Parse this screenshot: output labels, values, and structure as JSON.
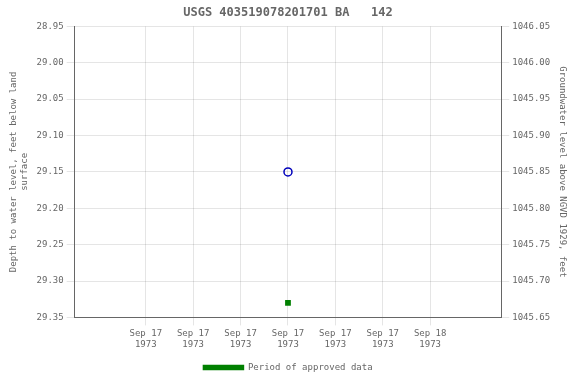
{
  "chart_data": {
    "type": "scatter",
    "title": "USGS 403519078201701 BA   142",
    "y_label": "Depth to water level, feet below land\nsurface",
    "y2_label": "Groundwater level above NGVD 1929, feet",
    "x": [
      12
    ],
    "series": [
      {
        "color": "#0000bb",
        "marker": "circle",
        "values": [
          29.15
        ]
      },
      {
        "name": "Period of approved data",
        "color": "#008000",
        "marker": "square",
        "values": [
          29.33
        ]
      }
    ],
    "xlim": [
      -6,
      30
    ],
    "xticks": [
      {
        "value": 0,
        "label": "Sep 17\n1973"
      },
      {
        "value": 4,
        "label": "Sep 17\n1973"
      },
      {
        "value": 8,
        "label": "Sep 17\n1973"
      },
      {
        "value": 12,
        "label": "Sep 17\n1973"
      },
      {
        "value": 16,
        "label": "Sep 17\n1973"
      },
      {
        "value": 20,
        "label": "Sep 17\n1973"
      },
      {
        "value": 24,
        "label": "Sep 18\n1973"
      }
    ],
    "ylim": [
      29.35,
      28.95
    ],
    "yticks": [
      28.95,
      {
        "value": 29.0,
        "label": "29.00"
      },
      29.05,
      {
        "value": 29.1,
        "label": "29.10"
      },
      29.15,
      {
        "value": 29.2,
        "label": "29.20"
      },
      29.25,
      {
        "value": 29.3,
        "label": "29.30"
      },
      29.35
    ],
    "y2lim": [
      1045.65,
      1046.05
    ],
    "y2ticks": [
      1045.65,
      {
        "value": 1045.7,
        "label": "1045.70"
      },
      1045.75,
      {
        "value": 1045.8,
        "label": "1045.80"
      },
      1045.85,
      {
        "value": 1045.9,
        "label": "1045.90"
      },
      1045.95,
      {
        "value": 1046.0,
        "label": "1046.00"
      },
      1046.05
    ],
    "grid": true,
    "legend": "bottom"
  }
}
